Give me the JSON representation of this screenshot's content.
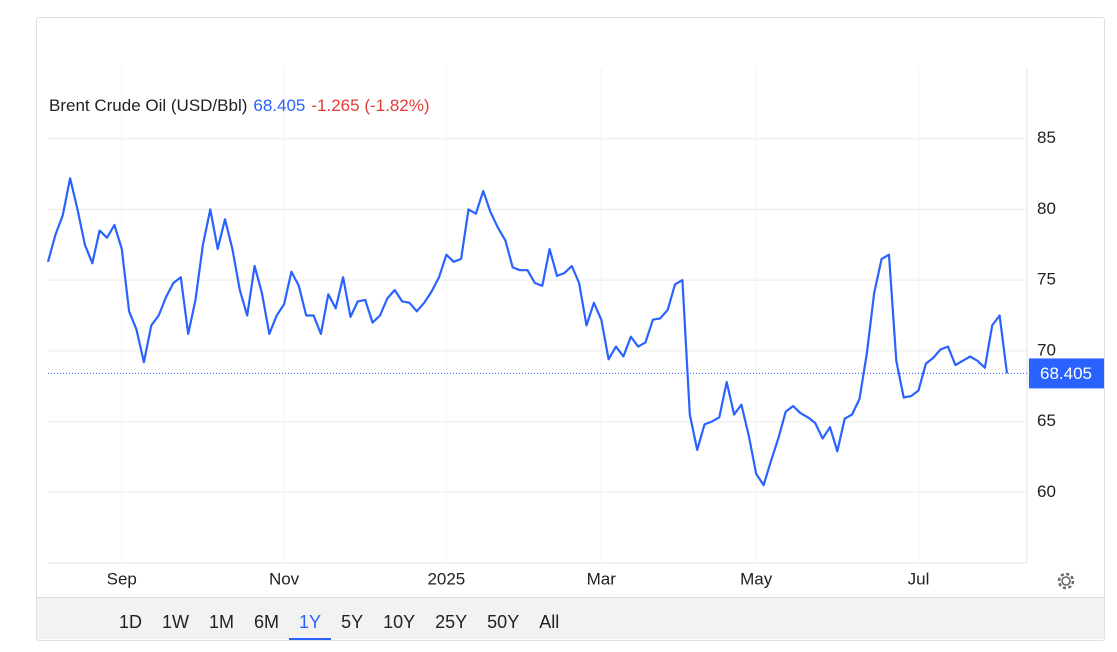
{
  "chart_data": {
    "type": "line",
    "series": [
      {
        "name": "Brent Crude Oil (USD/Bbl)",
        "color": "#2962ff",
        "values": [
          76.3,
          78.2,
          79.6,
          82.2,
          80,
          77.5,
          76.2,
          78.5,
          78,
          78.9,
          77.2,
          72.8,
          71.5,
          69.2,
          71.8,
          72.5,
          73.8,
          74.8,
          75.2,
          71.2,
          73.6,
          77.5,
          80,
          77.2,
          79.3,
          77.2,
          74.3,
          72.5,
          76,
          74.1,
          71.2,
          72.5,
          73.3,
          75.6,
          74.6,
          72.5,
          72.5,
          71.2,
          74,
          73,
          75.2,
          72.4,
          73.5,
          73.6,
          72,
          72.5,
          73.7,
          74.3,
          73.5,
          73.4,
          72.8,
          73.4,
          74.2,
          75.2,
          76.8,
          76.3,
          76.5,
          80,
          79.7,
          81.3,
          79.8,
          78.7,
          77.8,
          75.9,
          75.7,
          75.7,
          74.8,
          74.6,
          77.2,
          75.3,
          75.5,
          76,
          74.8,
          71.8,
          73.4,
          72.2,
          69.4,
          70.3,
          69.6,
          71,
          70.3,
          70.6,
          72.2,
          72.3,
          72.9,
          74.7,
          75,
          65.5,
          63,
          64.8,
          65,
          65.3,
          67.8,
          65.5,
          66.2,
          64,
          61.3,
          60.5,
          62.2,
          63.8,
          65.7,
          66.1,
          65.6,
          65.3,
          64.9,
          63.8,
          64.6,
          62.9,
          65.2,
          65.5,
          66.6,
          69.8,
          74.1,
          76.5,
          76.8,
          69.3,
          66.7,
          66.8,
          67.2,
          69.1,
          69.5,
          70.1,
          70.3,
          69,
          69.3,
          69.6,
          69.3,
          68.8,
          71.8,
          72.5,
          68.405
        ]
      }
    ],
    "categories": [
      null,
      null,
      null,
      null,
      null,
      null,
      null,
      null,
      null,
      null,
      "Sep",
      null,
      null,
      null,
      null,
      null,
      null,
      null,
      null,
      null,
      null,
      null,
      null,
      null,
      null,
      null,
      null,
      null,
      null,
      null,
      null,
      null,
      "Nov",
      null,
      null,
      null,
      null,
      null,
      null,
      null,
      null,
      null,
      null,
      null,
      null,
      null,
      null,
      null,
      null,
      null,
      null,
      null,
      null,
      null,
      "2025",
      null,
      null,
      null,
      null,
      null,
      null,
      null,
      null,
      null,
      null,
      null,
      null,
      null,
      null,
      null,
      null,
      null,
      null,
      null,
      null,
      "Mar",
      null,
      null,
      null,
      null,
      null,
      null,
      null,
      null,
      null,
      null,
      null,
      null,
      null,
      null,
      null,
      null,
      null,
      null,
      null,
      null,
      "May",
      null,
      null,
      null,
      null,
      null,
      null,
      null,
      null,
      null,
      null,
      null,
      null,
      null,
      null,
      null,
      null,
      null,
      null,
      null,
      null,
      null,
      "Jul",
      null,
      null,
      null,
      null,
      null,
      null,
      null,
      null,
      null,
      null,
      null,
      null
    ],
    "last_value": 68.405,
    "change_label": "-1.265 (-1.82%)",
    "ylim": [
      55,
      90
    ],
    "yticks": [
      60,
      65,
      70,
      75,
      80,
      85
    ],
    "grid": true,
    "ranges": [
      "1D",
      "1W",
      "1M",
      "6M",
      "1Y",
      "5Y",
      "10Y",
      "25Y",
      "50Y",
      "All"
    ],
    "selected_range": 4
  }
}
